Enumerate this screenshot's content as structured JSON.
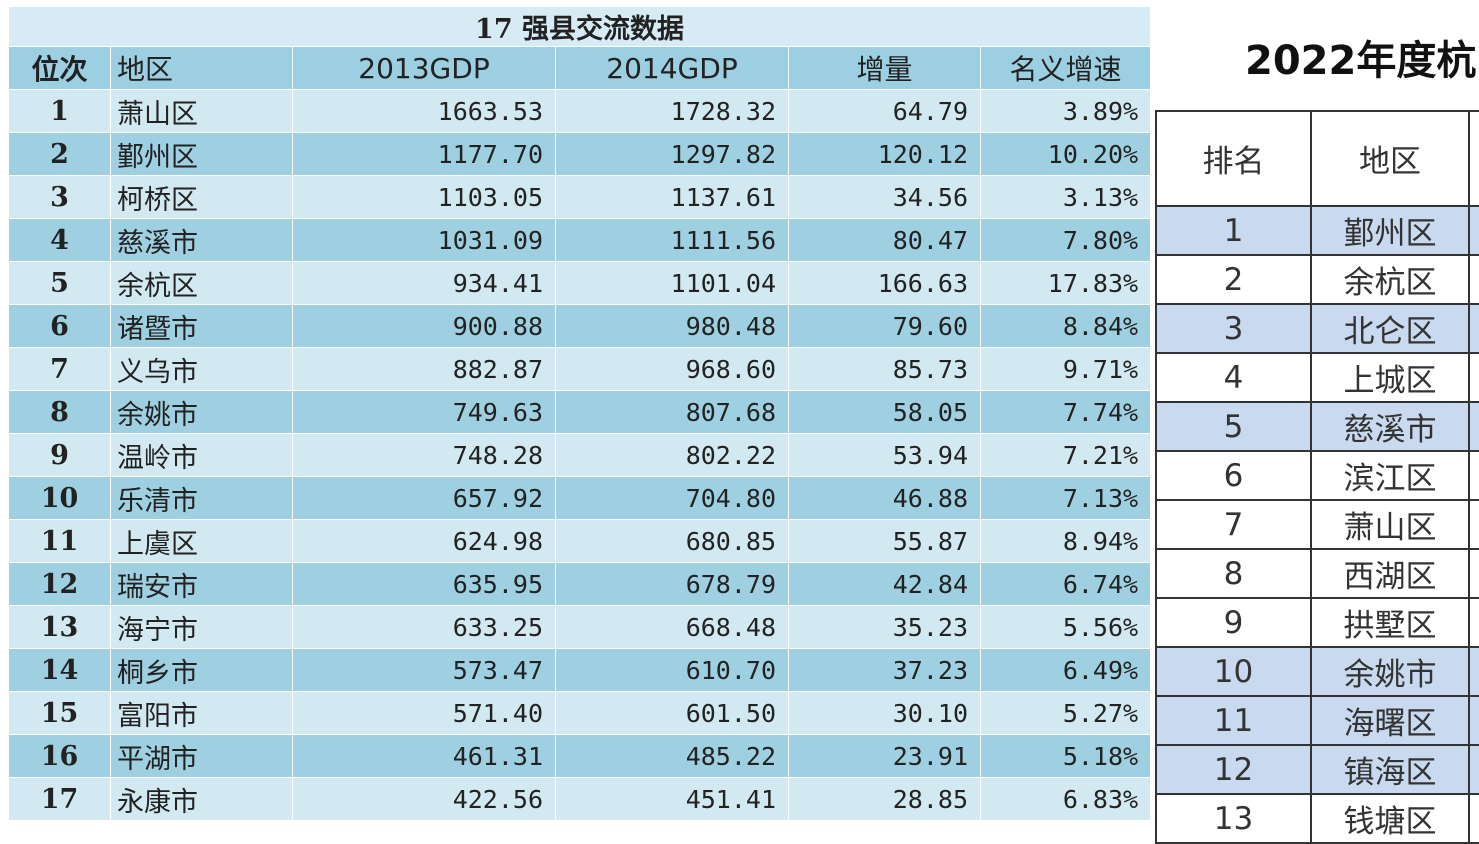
{
  "left_table": {
    "title": "17 强县交流数据",
    "headers": [
      "位次",
      "地区",
      "2013GDP",
      "2014GDP",
      "增量",
      "名义增速"
    ],
    "rows": [
      [
        "1",
        "萧山区",
        "1663.53",
        "1728.32",
        "64.79",
        "3.89%"
      ],
      [
        "2",
        "鄞州区",
        "1177.70",
        "1297.82",
        "120.12",
        "10.20%"
      ],
      [
        "3",
        "柯桥区",
        "1103.05",
        "1137.61",
        "34.56",
        "3.13%"
      ],
      [
        "4",
        "慈溪市",
        "1031.09",
        "1111.56",
        "80.47",
        "7.80%"
      ],
      [
        "5",
        "余杭区",
        "934.41",
        "1101.04",
        "166.63",
        "17.83%"
      ],
      [
        "6",
        "诸暨市",
        "900.88",
        "980.48",
        "79.60",
        "8.84%"
      ],
      [
        "7",
        "义乌市",
        "882.87",
        "968.60",
        "85.73",
        "9.71%"
      ],
      [
        "8",
        "余姚市",
        "749.63",
        "807.68",
        "58.05",
        "7.74%"
      ],
      [
        "9",
        "温岭市",
        "748.28",
        "802.22",
        "53.94",
        "7.21%"
      ],
      [
        "10",
        "乐清市",
        "657.92",
        "704.80",
        "46.88",
        "7.13%"
      ],
      [
        "11",
        "上虞区",
        "624.98",
        "680.85",
        "55.87",
        "8.94%"
      ],
      [
        "12",
        "瑞安市",
        "635.95",
        "678.79",
        "42.84",
        "6.74%"
      ],
      [
        "13",
        "海宁市",
        "633.25",
        "668.48",
        "35.23",
        "5.56%"
      ],
      [
        "14",
        "桐乡市",
        "573.47",
        "610.70",
        "37.23",
        "6.49%"
      ],
      [
        "15",
        "富阳市",
        "571.40",
        "601.50",
        "30.10",
        "5.27%"
      ],
      [
        "16",
        "平湖市",
        "461.31",
        "485.22",
        "23.91",
        "5.18%"
      ],
      [
        "17",
        "永康市",
        "422.56",
        "451.41",
        "28.85",
        "6.83%"
      ]
    ]
  },
  "right_table": {
    "title": "2022年度杭",
    "headers": [
      "排名",
      "地区"
    ],
    "rows": [
      [
        "1",
        "鄞州区"
      ],
      [
        "2",
        "余杭区"
      ],
      [
        "3",
        "北仑区"
      ],
      [
        "4",
        "上城区"
      ],
      [
        "5",
        "慈溪市"
      ],
      [
        "6",
        "滨江区"
      ],
      [
        "7",
        "萧山区"
      ],
      [
        "8",
        "西湖区"
      ],
      [
        "9",
        "拱墅区"
      ],
      [
        "10",
        "余姚市"
      ],
      [
        "11",
        "海曙区"
      ],
      [
        "12",
        "镇海区"
      ],
      [
        "13",
        "钱塘区"
      ]
    ]
  }
}
